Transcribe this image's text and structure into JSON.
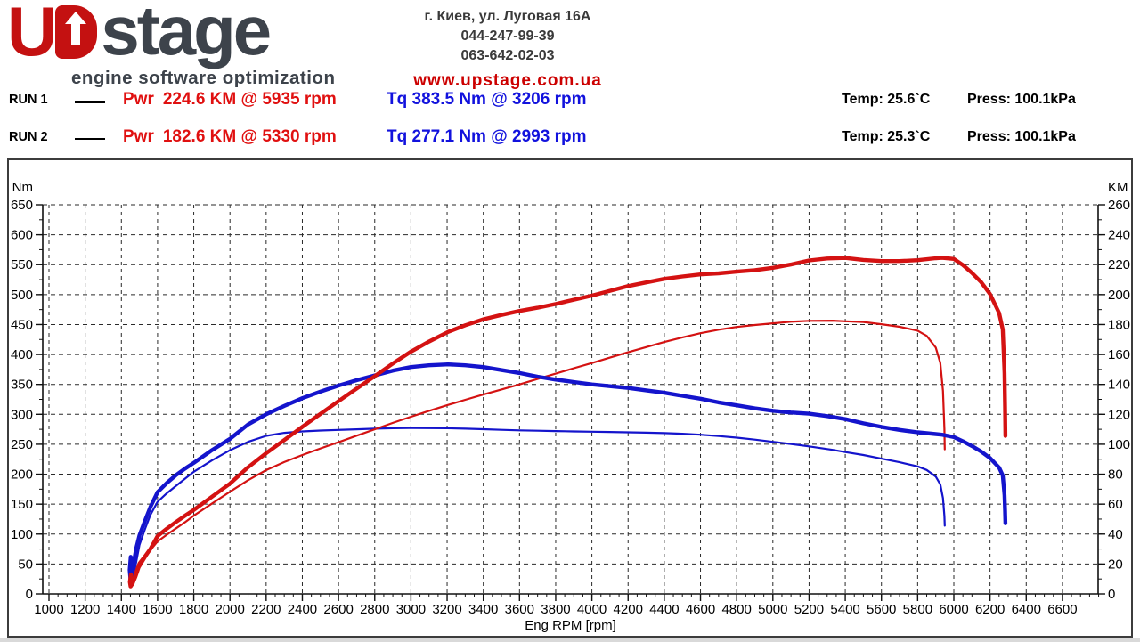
{
  "header": {
    "logo": {
      "u": "U",
      "stage": "stage",
      "tagline": "engine software optimization",
      "red": "#c41111",
      "dark": "#3d434b"
    },
    "contact": {
      "address": "г. Киев, ул. Луговая 16А",
      "phone1": "044-247-99-39",
      "phone2": "063-642-02-03",
      "website": "www.upstage.com.ua"
    }
  },
  "runs": [
    {
      "label": "RUN 1",
      "pwr_label": "Pwr",
      "pwr_value": "224.6 KM @ 5935 rpm",
      "tq_label": "Tq",
      "tq_value": "383.5 Nm @ 3206 rpm",
      "temp": "Temp: 25.6`C",
      "press": "Press: 100.1kPa"
    },
    {
      "label": "RUN 2",
      "pwr_label": "Pwr",
      "pwr_value": "182.6 KM @ 5330 rpm",
      "tq_label": "Tq",
      "tq_value": "277.1 Nm @ 2993 rpm",
      "temp": "Temp: 25.3`C",
      "press": "Press: 100.1kPa"
    }
  ],
  "colors": {
    "power_red": "#d41212",
    "torque_blue": "#1414cc",
    "grid": "#2a2a2a",
    "axis": "#111111"
  },
  "chart_data": {
    "type": "line",
    "x_axis": {
      "label": "Eng RPM [rpm]",
      "min": 1000,
      "max": 6600,
      "step": 200,
      "minor_step": 50
    },
    "left_axis": {
      "label": "Nm",
      "min": 0,
      "max": 650,
      "step": 50,
      "minor_step": 25
    },
    "right_axis": {
      "label": "KM",
      "min": 0,
      "max": 260,
      "step": 20,
      "minor_step": 10
    },
    "grid": true,
    "series": [
      {
        "name": "RUN 2 Torque (Nm)",
        "axis": "left",
        "style": "thin",
        "peak": {
          "value": 277.1,
          "rpm": 2993
        },
        "points": [
          [
            1456,
            48
          ],
          [
            1450,
            30
          ],
          [
            1454,
            22
          ],
          [
            1463,
            27
          ],
          [
            1478,
            47
          ],
          [
            1500,
            82
          ],
          [
            1530,
            108
          ],
          [
            1560,
            132
          ],
          [
            1600,
            154
          ],
          [
            1650,
            168
          ],
          [
            1700,
            180
          ],
          [
            1750,
            192
          ],
          [
            1800,
            204
          ],
          [
            1900,
            223
          ],
          [
            2000,
            240
          ],
          [
            2100,
            254
          ],
          [
            2200,
            264
          ],
          [
            2300,
            269
          ],
          [
            2400,
            271.5
          ],
          [
            2500,
            273
          ],
          [
            2600,
            274
          ],
          [
            2700,
            275
          ],
          [
            2800,
            276
          ],
          [
            2900,
            276.8
          ],
          [
            2993,
            277.1
          ],
          [
            3100,
            277
          ],
          [
            3200,
            276.8
          ],
          [
            3300,
            276
          ],
          [
            3400,
            275.2
          ],
          [
            3500,
            274.2
          ],
          [
            3600,
            273.3
          ],
          [
            3700,
            272.6
          ],
          [
            3800,
            272
          ],
          [
            3900,
            271.5
          ],
          [
            4000,
            271
          ],
          [
            4100,
            270.5
          ],
          [
            4200,
            270
          ],
          [
            4300,
            269.4
          ],
          [
            4400,
            268.7
          ],
          [
            4500,
            267.6
          ],
          [
            4600,
            266
          ],
          [
            4700,
            263.7
          ],
          [
            4800,
            261
          ],
          [
            4900,
            257.7
          ],
          [
            5000,
            254
          ],
          [
            5100,
            250.5
          ],
          [
            5200,
            246.5
          ],
          [
            5330,
            240.6
          ],
          [
            5400,
            237
          ],
          [
            5500,
            232
          ],
          [
            5600,
            226
          ],
          [
            5700,
            220
          ],
          [
            5800,
            213
          ],
          [
            5850,
            207
          ],
          [
            5900,
            196
          ],
          [
            5925,
            183
          ],
          [
            5940,
            160
          ],
          [
            5948,
            130
          ],
          [
            5950,
            114
          ]
        ]
      },
      {
        "name": "RUN 2 Power (KM)",
        "axis": "right",
        "style": "thin",
        "peak": {
          "value": 182.6,
          "rpm": 5330
        },
        "points": [
          [
            1456,
            10
          ],
          [
            1450,
            6
          ],
          [
            1454,
            4.5
          ],
          [
            1466,
            6.5
          ],
          [
            1482,
            11
          ],
          [
            1500,
            17.5
          ],
          [
            1530,
            23.5
          ],
          [
            1560,
            29.3
          ],
          [
            1600,
            35.1
          ],
          [
            1650,
            39.5
          ],
          [
            1700,
            43.6
          ],
          [
            1750,
            47.8
          ],
          [
            1800,
            52.3
          ],
          [
            1900,
            60.3
          ],
          [
            2000,
            68.3
          ],
          [
            2100,
            76
          ],
          [
            2200,
            82.7
          ],
          [
            2300,
            88.1
          ],
          [
            2400,
            92.8
          ],
          [
            2500,
            97.2
          ],
          [
            2600,
            101.4
          ],
          [
            2700,
            105.7
          ],
          [
            2800,
            110
          ],
          [
            2900,
            114.3
          ],
          [
            2993,
            118.1
          ],
          [
            3100,
            122.3
          ],
          [
            3200,
            126.1
          ],
          [
            3300,
            129.7
          ],
          [
            3400,
            133.2
          ],
          [
            3500,
            136.6
          ],
          [
            3600,
            140
          ],
          [
            3700,
            143.6
          ],
          [
            3800,
            147.2
          ],
          [
            3900,
            150.8
          ],
          [
            4000,
            154.3
          ],
          [
            4100,
            157.9
          ],
          [
            4200,
            161.5
          ],
          [
            4300,
            164.9
          ],
          [
            4400,
            168.3
          ],
          [
            4500,
            171.4
          ],
          [
            4600,
            174.2
          ],
          [
            4700,
            176.5
          ],
          [
            4800,
            178.4
          ],
          [
            4900,
            179.7
          ],
          [
            5000,
            180.8
          ],
          [
            5100,
            181.9
          ],
          [
            5200,
            182.5
          ],
          [
            5330,
            182.6
          ],
          [
            5400,
            182.2
          ],
          [
            5500,
            181.7
          ],
          [
            5600,
            180.2
          ],
          [
            5700,
            178.5
          ],
          [
            5800,
            175.9
          ],
          [
            5850,
            172.4
          ],
          [
            5900,
            164.6
          ],
          [
            5925,
            154.4
          ],
          [
            5940,
            135.6
          ],
          [
            5948,
            110.1
          ],
          [
            5950,
            96.6
          ]
        ]
      },
      {
        "name": "RUN 1 Torque (Nm)",
        "axis": "left",
        "style": "thick",
        "peak": {
          "value": 383.5,
          "rpm": 3206
        },
        "points": [
          [
            1452,
            62
          ],
          [
            1446,
            40
          ],
          [
            1450,
            26
          ],
          [
            1458,
            30
          ],
          [
            1468,
            52
          ],
          [
            1482,
            76
          ],
          [
            1500,
            98
          ],
          [
            1530,
            122
          ],
          [
            1560,
            145
          ],
          [
            1600,
            170
          ],
          [
            1650,
            185
          ],
          [
            1700,
            198
          ],
          [
            1750,
            209
          ],
          [
            1800,
            219
          ],
          [
            1900,
            240
          ],
          [
            2000,
            259
          ],
          [
            2100,
            283
          ],
          [
            2200,
            300
          ],
          [
            2300,
            314
          ],
          [
            2400,
            327
          ],
          [
            2500,
            338
          ],
          [
            2600,
            348
          ],
          [
            2700,
            357
          ],
          [
            2800,
            365
          ],
          [
            2900,
            373
          ],
          [
            3000,
            379
          ],
          [
            3100,
            382
          ],
          [
            3206,
            383.5
          ],
          [
            3300,
            382
          ],
          [
            3400,
            379
          ],
          [
            3500,
            374
          ],
          [
            3600,
            369
          ],
          [
            3700,
            363
          ],
          [
            3800,
            358
          ],
          [
            3900,
            354
          ],
          [
            4000,
            350
          ],
          [
            4100,
            347
          ],
          [
            4200,
            344
          ],
          [
            4300,
            340
          ],
          [
            4400,
            336
          ],
          [
            4500,
            331
          ],
          [
            4600,
            326
          ],
          [
            4700,
            320
          ],
          [
            4800,
            315
          ],
          [
            4900,
            310
          ],
          [
            5000,
            306
          ],
          [
            5100,
            303
          ],
          [
            5200,
            301
          ],
          [
            5300,
            297
          ],
          [
            5400,
            292
          ],
          [
            5500,
            285
          ],
          [
            5600,
            279
          ],
          [
            5700,
            274
          ],
          [
            5800,
            270
          ],
          [
            5900,
            267
          ],
          [
            5935,
            266
          ],
          [
            6000,
            262
          ],
          [
            6050,
            255
          ],
          [
            6100,
            247
          ],
          [
            6150,
            238
          ],
          [
            6200,
            227
          ],
          [
            6250,
            211
          ],
          [
            6270,
            198
          ],
          [
            6280,
            165
          ],
          [
            6283,
            140
          ],
          [
            6285,
            118
          ]
        ]
      },
      {
        "name": "RUN 1 Power (KM)",
        "axis": "right",
        "style": "thick",
        "peak": {
          "value": 224.6,
          "rpm": 5935
        },
        "points": [
          [
            1453,
            13
          ],
          [
            1447,
            8
          ],
          [
            1451,
            5
          ],
          [
            1462,
            7
          ],
          [
            1478,
            13
          ],
          [
            1500,
            20.3
          ],
          [
            1530,
            25
          ],
          [
            1560,
            30
          ],
          [
            1600,
            38.7
          ],
          [
            1650,
            43.5
          ],
          [
            1700,
            47.9
          ],
          [
            1750,
            52.1
          ],
          [
            1800,
            56.1
          ],
          [
            1900,
            64.9
          ],
          [
            2000,
            73.7
          ],
          [
            2100,
            84.6
          ],
          [
            2200,
            94
          ],
          [
            2300,
            102.8
          ],
          [
            2400,
            111.7
          ],
          [
            2500,
            120.3
          ],
          [
            2600,
            128.8
          ],
          [
            2700,
            137.2
          ],
          [
            2800,
            145.5
          ],
          [
            2900,
            154
          ],
          [
            3000,
            161.9
          ],
          [
            3100,
            168.6
          ],
          [
            3206,
            175.1
          ],
          [
            3300,
            179.5
          ],
          [
            3400,
            183.5
          ],
          [
            3500,
            186.4
          ],
          [
            3600,
            189.1
          ],
          [
            3700,
            191.2
          ],
          [
            3800,
            193.7
          ],
          [
            3900,
            196.6
          ],
          [
            4000,
            199.3
          ],
          [
            4100,
            202.5
          ],
          [
            4200,
            205.7
          ],
          [
            4300,
            208.1
          ],
          [
            4400,
            210.5
          ],
          [
            4500,
            212.1
          ],
          [
            4600,
            213.5
          ],
          [
            4700,
            214.2
          ],
          [
            4800,
            215.3
          ],
          [
            4900,
            216.3
          ],
          [
            5000,
            217.9
          ],
          [
            5100,
            220.1
          ],
          [
            5200,
            222.8
          ],
          [
            5300,
            224.1
          ],
          [
            5400,
            224.5
          ],
          [
            5500,
            223.2
          ],
          [
            5600,
            222.4
          ],
          [
            5700,
            222.4
          ],
          [
            5800,
            223
          ],
          [
            5900,
            224.3
          ],
          [
            5935,
            224.6
          ],
          [
            6000,
            223.8
          ],
          [
            6050,
            219.7
          ],
          [
            6100,
            214.5
          ],
          [
            6150,
            208.4
          ],
          [
            6200,
            200.4
          ],
          [
            6250,
            187.8
          ],
          [
            6270,
            176.7
          ],
          [
            6280,
            147.6
          ],
          [
            6283,
            125.2
          ],
          [
            6285,
            105.6
          ]
        ]
      }
    ]
  }
}
